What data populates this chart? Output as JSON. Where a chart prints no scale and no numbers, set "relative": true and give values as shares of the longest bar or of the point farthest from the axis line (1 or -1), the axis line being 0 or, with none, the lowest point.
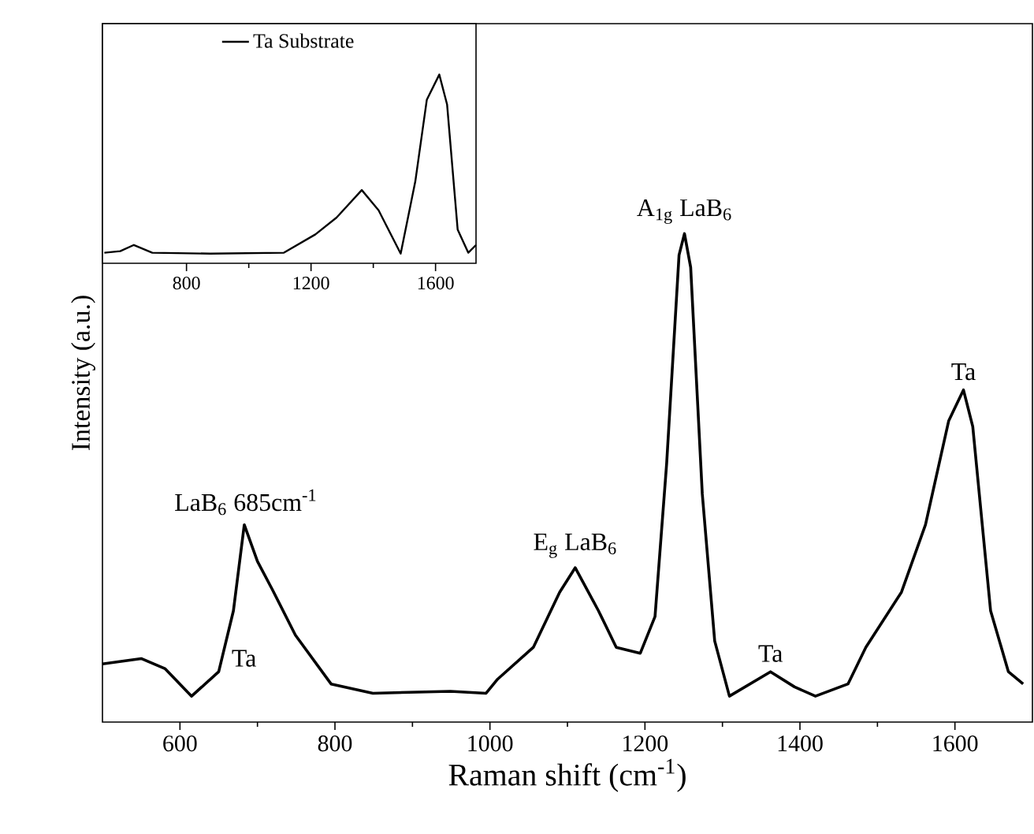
{
  "chart_data": [
    {
      "type": "line",
      "xlabel": "Raman shift (cm$^{-1}$)",
      "ylabel": "Intensity (a.u.)",
      "relative": true,
      "xlim": [
        500,
        1700
      ],
      "xticks": [
        600,
        800,
        1000,
        1200,
        1400,
        1600
      ],
      "series": [
        {
          "color": "#000000",
          "x": [
            500,
            550,
            581,
            615,
            650,
            669,
            683,
            700,
            719,
            749,
            795,
            849,
            949,
            995,
            1010,
            1056,
            1090,
            1110,
            1140,
            1163,
            1194,
            1213,
            1228,
            1244,
            1251,
            1259,
            1274,
            1290,
            1309,
            1362,
            1393,
            1420,
            1462,
            1485,
            1531,
            1562,
            1592,
            1611,
            1623,
            1646,
            1669,
            1688
          ],
          "values": [
            0.119,
            0.13,
            0.109,
            0.053,
            0.103,
            0.228,
            0.404,
            0.329,
            0.272,
            0.178,
            0.078,
            0.059,
            0.063,
            0.059,
            0.088,
            0.153,
            0.266,
            0.316,
            0.228,
            0.153,
            0.141,
            0.216,
            0.529,
            0.956,
            1,
            0.931,
            0.467,
            0.166,
            0.053,
            0.103,
            0.072,
            0.053,
            0.078,
            0.153,
            0.266,
            0.404,
            0.617,
            0.68,
            0.605,
            0.228,
            0.103,
            0.078
          ]
        }
      ],
      "annotations": [
        {
          "text": "LaB$_{6}$ 685cm$^{-1}$",
          "x": 685,
          "y": 0.404
        },
        {
          "text": "Ta",
          "x": 650,
          "y": 0.103
        },
        {
          "text": "E$_{g}$ LaB$_{6}$",
          "x": 1110,
          "y": 0.316
        },
        {
          "text": "A$_{1g}$ LaB$_{6}$",
          "x": 1251,
          "y": 1
        },
        {
          "text": "Ta",
          "x": 1362,
          "y": 0.103
        },
        {
          "text": "Ta",
          "x": 1611,
          "y": 0.68
        }
      ]
    },
    {
      "type": "line",
      "relative": true,
      "xlim": [
        530,
        1730
      ],
      "xticks": [
        800,
        1200,
        1600
      ],
      "legend": "top",
      "series": [
        {
          "name": "Ta Substrate",
          "color": "#000000",
          "x": [
            536,
            587,
            631,
            690,
            876,
            1113,
            1214,
            1282,
            1363,
            1417,
            1488,
            1535,
            1572,
            1612,
            1637,
            1671,
            1705,
            1730
          ],
          "values": [
            0.056,
            0.064,
            0.097,
            0.056,
            0.051,
            0.056,
            0.153,
            0.242,
            0.388,
            0.281,
            0.051,
            0.434,
            0.867,
            1,
            0.842,
            0.179,
            0.056,
            0.097
          ]
        }
      ]
    }
  ]
}
